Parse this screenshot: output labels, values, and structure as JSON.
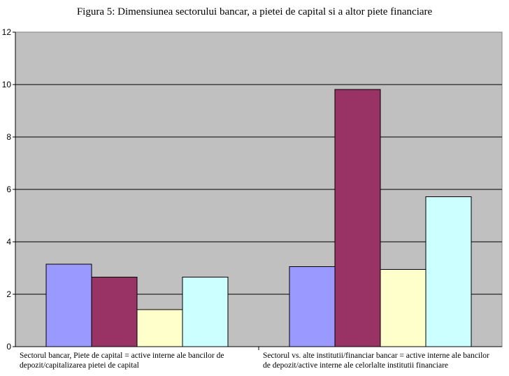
{
  "chart_data": {
    "type": "bar",
    "title": "Figura 5: Dimensiunea sectorului bancar, a pietei de capital si a altor piete financiare",
    "xlabel": "",
    "ylabel": "",
    "ylim": [
      0,
      12
    ],
    "yticks": [
      "0",
      "2",
      "4",
      "6",
      "8",
      "10",
      "12"
    ],
    "grid": true,
    "legend": "none",
    "plot_background": "#c0c0c0",
    "categories": [
      [
        "Sectorul bancar, Piete de capital = active interne ale bancilor de",
        "depozit/capitalizarea pietei de capital"
      ],
      [
        "Sectorul vs. alte institutii/financiar bancar = active interne ale bancilor",
        "de depozit/active interne ale celorlalte institutii financiare"
      ]
    ],
    "series": [
      {
        "color": "#9999ff",
        "values": [
          3.15,
          3.05
        ]
      },
      {
        "color": "#993366",
        "values": [
          2.65,
          9.82
        ]
      },
      {
        "color": "#ffffcc",
        "values": [
          1.42,
          2.95
        ]
      },
      {
        "color": "#ccffff",
        "values": [
          2.65,
          5.72
        ]
      }
    ]
  }
}
